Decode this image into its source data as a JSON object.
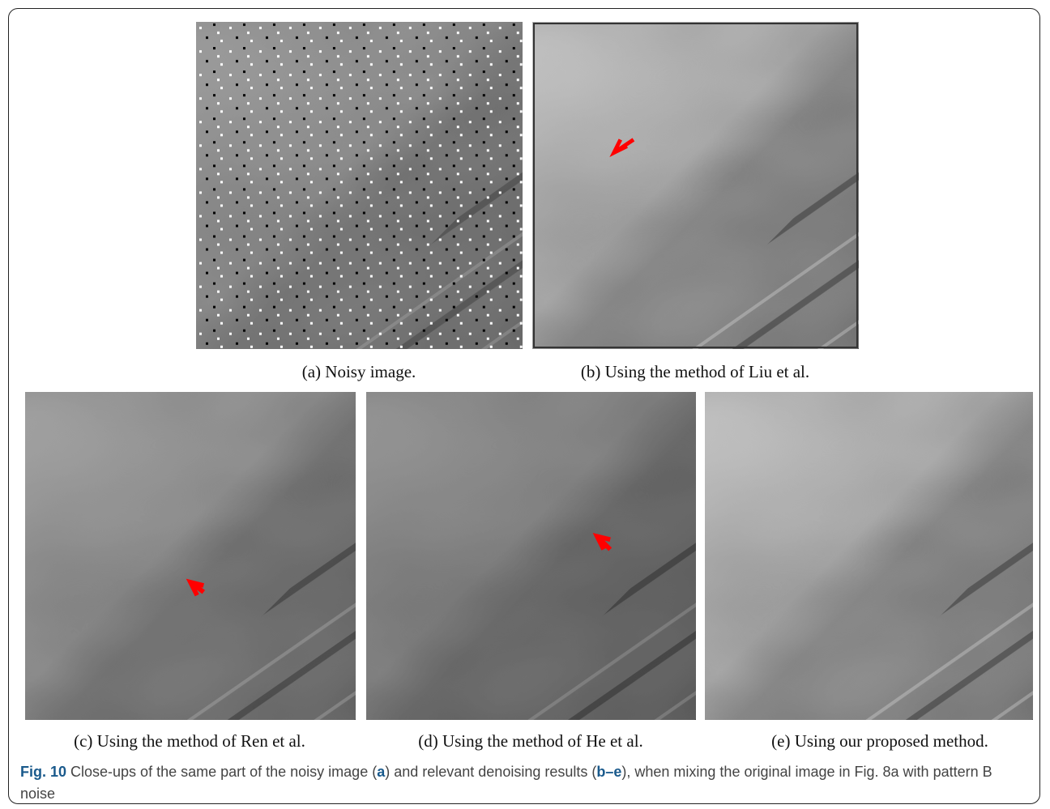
{
  "panels": [
    {
      "caption": "(a) Noisy image."
    },
    {
      "caption": "(b) Using the method of Liu et al."
    },
    {
      "caption": "(c) Using the method of Ren et al."
    },
    {
      "caption": "(d) Using the method of He et al."
    },
    {
      "caption": "(e) Using our proposed method."
    }
  ],
  "figure_caption": {
    "label": "Fig. 10",
    "parts": [
      "Close-ups of the same part of the noisy image (",
      "a",
      ") and relevant denoising results (",
      "b–e",
      "), when mixing the original image in Fig. 8a with pattern B noise"
    ]
  }
}
